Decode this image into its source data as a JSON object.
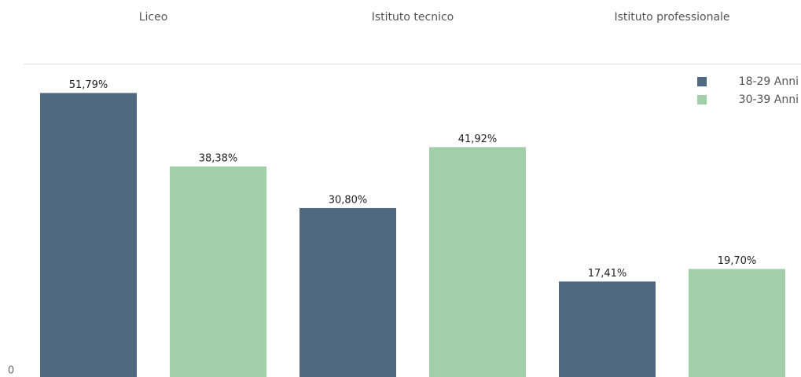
{
  "chart_data": {
    "type": "bar",
    "categories": [
      "Liceo",
      "Istituto tecnico",
      "Istituto professionale"
    ],
    "series": [
      {
        "name": "18-29 Anni",
        "color": "#4f6980",
        "values": [
          51.79,
          30.8,
          17.41
        ],
        "value_labels": [
          "51,79%",
          "30,80%",
          "17,41%"
        ]
      },
      {
        "name": "30-39 Anni",
        "color": "#a2ceaa",
        "values": [
          38.38,
          41.92,
          19.7
        ],
        "value_labels": [
          "38,38%",
          "41,92%",
          "19,70%"
        ]
      }
    ],
    "ylim": [
      0,
      57
    ],
    "yticks": [
      0
    ],
    "legend": "top-right"
  }
}
